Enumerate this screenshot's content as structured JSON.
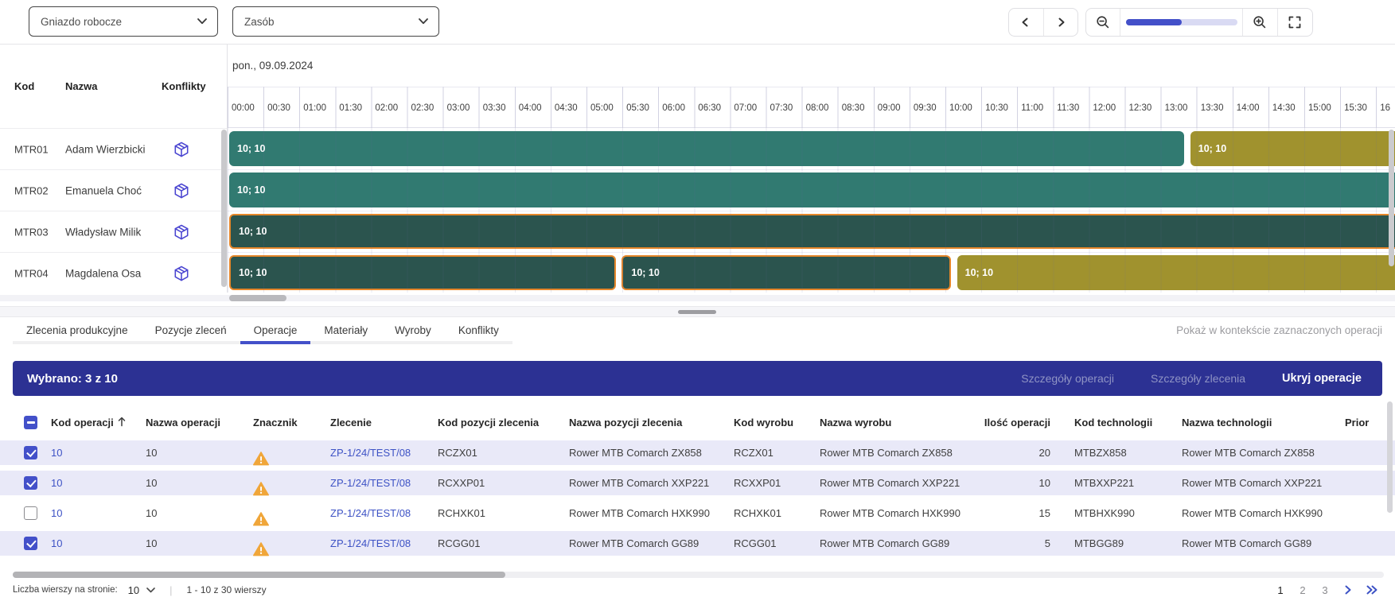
{
  "toolbar": {
    "workcenter_label": "Gniazdo robocze",
    "resource_label": "Zasób",
    "zoom_percent": 50
  },
  "gantt": {
    "date_header": "pon., 09.09.2024",
    "columns": {
      "kod": "Kod",
      "nazwa": "Nazwa",
      "konflikty": "Konflikty"
    },
    "resources": [
      {
        "kod": "MTR01",
        "nazwa": "Adam Wierzbicki"
      },
      {
        "kod": "MTR02",
        "nazwa": "Emanuela Choć"
      },
      {
        "kod": "MTR03",
        "nazwa": "Władysław Milik"
      },
      {
        "kod": "MTR04",
        "nazwa": "Magdalena Osa"
      }
    ],
    "times": [
      "00:00",
      "00:30",
      "01:00",
      "01:30",
      "02:00",
      "02:30",
      "03:00",
      "03:30",
      "04:00",
      "04:30",
      "05:00",
      "05:30",
      "06:00",
      "06:30",
      "07:00",
      "07:30",
      "08:00",
      "08:30",
      "09:00",
      "09:30",
      "10:00",
      "10:30",
      "11:00",
      "11:30",
      "12:00",
      "12:30",
      "13:00",
      "13:30",
      "14:00",
      "14:30",
      "15:00",
      "15:30",
      "16"
    ],
    "bars": [
      {
        "row": 0,
        "label": "10; 10",
        "start": 0,
        "end": 13.35,
        "variant": "teal",
        "selected": false
      },
      {
        "row": 0,
        "label": "10; 10",
        "start": 13.39,
        "end": 16.4,
        "variant": "olive",
        "selected": false
      },
      {
        "row": 1,
        "label": "10; 10",
        "start": 0,
        "end": 16.4,
        "variant": "teal",
        "selected": false
      },
      {
        "row": 2,
        "label": "10; 10",
        "start": 0,
        "end": 16.4,
        "variant": "teal",
        "selected": true
      },
      {
        "row": 3,
        "label": "10; 10",
        "start": 0,
        "end": 5.43,
        "variant": "teal",
        "selected": true
      },
      {
        "row": 3,
        "label": "10; 10",
        "start": 5.47,
        "end": 10.1,
        "variant": "teal",
        "selected": true
      },
      {
        "row": 3,
        "label": "10; 10",
        "start": 10.14,
        "end": 16.4,
        "variant": "olive",
        "selected": false
      }
    ]
  },
  "tabs": [
    {
      "label": "Zlecenia produkcyjne",
      "active": false
    },
    {
      "label": "Pozycje zleceń",
      "active": false
    },
    {
      "label": "Operacje",
      "active": true
    },
    {
      "label": "Materiały",
      "active": false
    },
    {
      "label": "Wyroby",
      "active": false
    },
    {
      "label": "Konflikty",
      "active": false
    }
  ],
  "context_link": "Pokaż w kontekście zaznaczonych operacji",
  "selection_bar": {
    "label": "Wybrano: 3 z 10",
    "actions": [
      {
        "label": "Szczegóły operacji",
        "enabled": false
      },
      {
        "label": "Szczegóły zlecenia",
        "enabled": false
      },
      {
        "label": "Ukryj operacje",
        "enabled": true
      }
    ]
  },
  "table": {
    "header_checkbox": "indeterminate",
    "sort": {
      "column": "Kod operacji",
      "direction": "asc"
    },
    "columns": [
      "",
      "Kod operacji",
      "Nazwa operacji",
      "Znacznik",
      "Zlecenie",
      "Kod pozycji zlecenia",
      "Nazwa pozycji zlecenia",
      "Kod wyrobu",
      "Nazwa wyrobu",
      "Ilość operacji",
      "Kod technologii",
      "Nazwa technologii",
      "Prior"
    ],
    "rows": [
      {
        "checked": true,
        "kod_operacji": "10",
        "nazwa_operacji": "10",
        "znacznik": "warning",
        "zlecenie": "ZP-1/24/TEST/08",
        "kod_pozycji": "RCZX01",
        "nazwa_pozycji": "Rower MTB Comarch ZX858",
        "kod_wyrobu": "RCZX01",
        "nazwa_wyrobu": "Rower MTB Comarch ZX858",
        "ilosc": "20",
        "kod_technologii": "MTBZX858",
        "nazwa_technologii": "Rower MTB Comarch ZX858"
      },
      {
        "checked": true,
        "kod_operacji": "10",
        "nazwa_operacji": "10",
        "znacznik": "warning",
        "zlecenie": "ZP-1/24/TEST/08",
        "kod_pozycji": "RCXXP01",
        "nazwa_pozycji": "Rower MTB Comarch XXP221",
        "kod_wyrobu": "RCXXP01",
        "nazwa_wyrobu": "Rower MTB Comarch XXP221",
        "ilosc": "10",
        "kod_technologii": "MTBXXP221",
        "nazwa_technologii": "Rower MTB Comarch XXP221"
      },
      {
        "checked": false,
        "kod_operacji": "10",
        "nazwa_operacji": "10",
        "znacznik": "warning",
        "zlecenie": "ZP-1/24/TEST/08",
        "kod_pozycji": "RCHXK01",
        "nazwa_pozycji": "Rower MTB Comarch HXK990",
        "kod_wyrobu": "RCHXK01",
        "nazwa_wyrobu": "Rower MTB Comarch HXK990",
        "ilosc": "15",
        "kod_technologii": "MTBHXK990",
        "nazwa_technologii": "Rower MTB Comarch HXK990"
      },
      {
        "checked": true,
        "kod_operacji": "10",
        "nazwa_operacji": "10",
        "znacznik": "warning",
        "zlecenie": "ZP-1/24/TEST/08",
        "kod_pozycji": "RCGG01",
        "nazwa_pozycji": "Rower MTB Comarch GG89",
        "kod_wyrobu": "RCGG01",
        "nazwa_wyrobu": "Rower MTB Comarch GG89",
        "ilosc": "5",
        "kod_technologii": "MTBGG89",
        "nazwa_technologii": "Rower MTB Comarch GG89"
      }
    ]
  },
  "footer": {
    "page_size_label": "Liczba wierszy na stronie:",
    "page_size": "10",
    "separator": "|",
    "range": "1 - 10 z 30 wierszy",
    "pages": [
      "1",
      "2",
      "3"
    ],
    "current_page": "1"
  },
  "icons": {
    "toolbar": [
      "chevron-left",
      "chevron-right",
      "zoom-out",
      "zoom-slider",
      "zoom-in",
      "fullscreen"
    ],
    "dropdown": "chevron-down",
    "conflict": "cube",
    "marker": "warning-triangle",
    "sort": "arrow-up",
    "pagination": [
      "chevron-right",
      "double-chevron-right"
    ]
  },
  "colors": {
    "accent": "#4350c9",
    "link": "#3d52c5",
    "selection_bar_bg": "#2c3193",
    "bar_teal": "#317a71",
    "bar_selected": "#2b544e",
    "bar_olive": "#a0922e",
    "bar_selected_border": "#e5862a",
    "warning": "#f0a63a",
    "selected_row_bg": "#e9e9f8"
  }
}
